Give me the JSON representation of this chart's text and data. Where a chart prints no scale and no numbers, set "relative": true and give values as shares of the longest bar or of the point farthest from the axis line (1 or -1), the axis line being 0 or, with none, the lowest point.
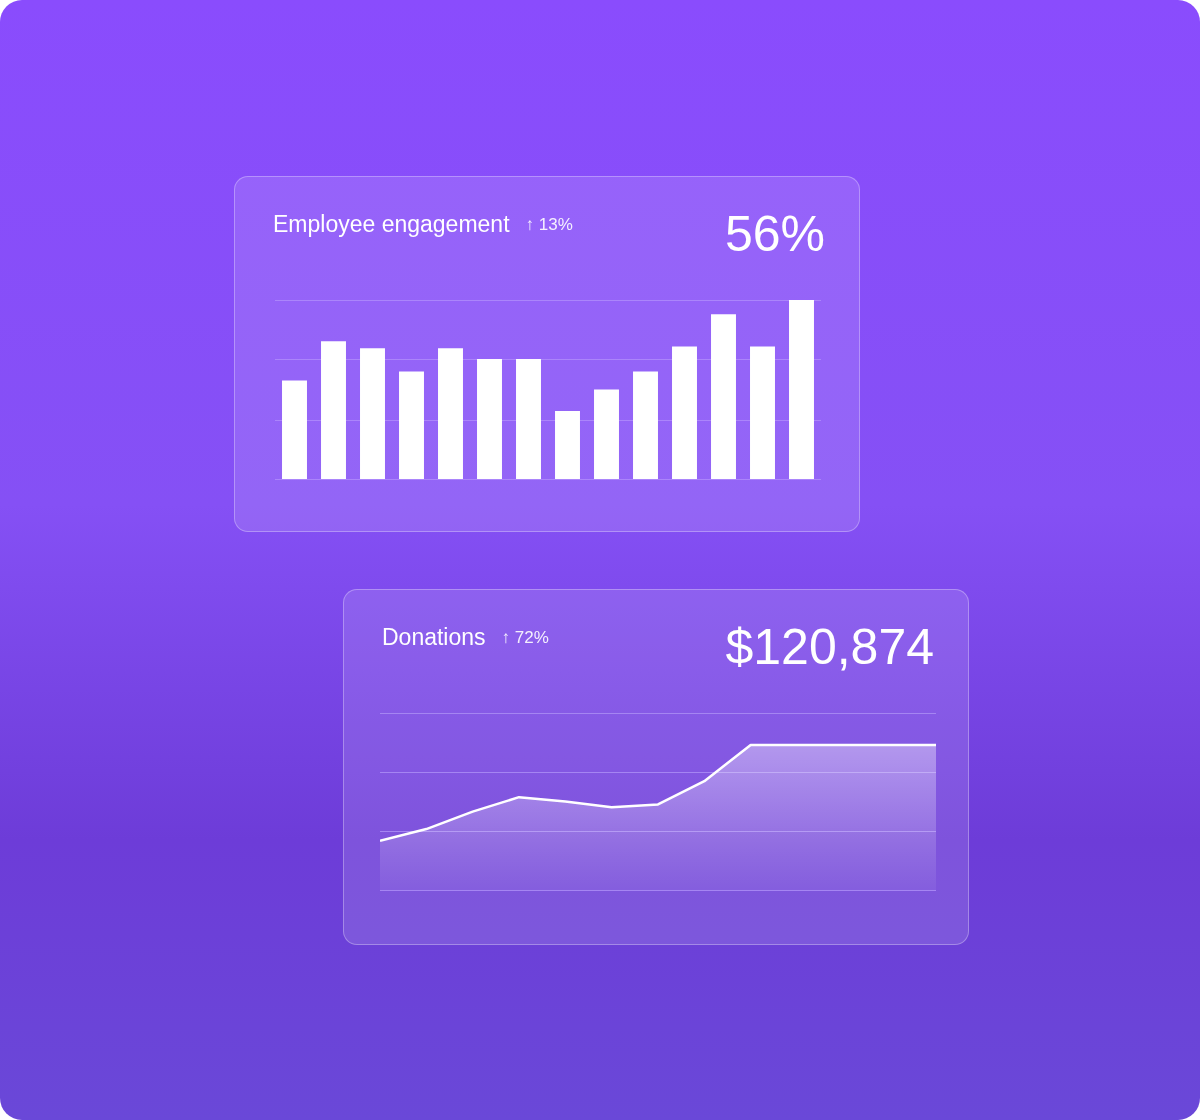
{
  "chart_data": [
    {
      "type": "bar",
      "title": "Employee engagement",
      "annotations": [
        "↑ 13%",
        "56%"
      ],
      "relative": true,
      "ref_lines": [
        {
          "axis": "y",
          "value": 0,
          "color": "#ab85fb"
        },
        {
          "axis": "y",
          "value": 0.33,
          "color": "#ab85fb"
        },
        {
          "axis": "y",
          "value": 0.67,
          "color": "#ab85fb"
        },
        {
          "axis": "y",
          "value": 1,
          "color": "#ab85fb"
        }
      ],
      "categories": [
        null,
        null,
        null,
        null,
        null,
        null,
        null,
        null,
        null,
        null,
        null,
        null,
        null,
        null
      ],
      "values": [
        0.55,
        0.77,
        0.73,
        0.6,
        0.73,
        0.67,
        0.67,
        0.38,
        0.5,
        0.6,
        0.74,
        0.92,
        0.74,
        1
      ],
      "color": "#ffffff"
    },
    {
      "type": "area",
      "title": "Donations",
      "annotations": [
        "↑ 72%",
        "$120,874"
      ],
      "relative": true,
      "ref_lines": [
        {
          "axis": "y",
          "value": 0,
          "color": "#a585f2"
        },
        {
          "axis": "y",
          "value": 0.41,
          "color": "#a585f2"
        },
        {
          "axis": "y",
          "value": 0.81,
          "color": "#a585f2"
        },
        {
          "axis": "y",
          "value": 1.22,
          "color": "#a585f2"
        }
      ],
      "categories": [
        null,
        null,
        null,
        null,
        null,
        null,
        null,
        null,
        null,
        null,
        null,
        null,
        null
      ],
      "values": [
        0.34,
        0.42,
        0.54,
        0.64,
        0.61,
        0.57,
        0.59,
        0.75,
        1,
        1,
        1,
        1,
        1
      ],
      "color": "#ffffff"
    }
  ]
}
